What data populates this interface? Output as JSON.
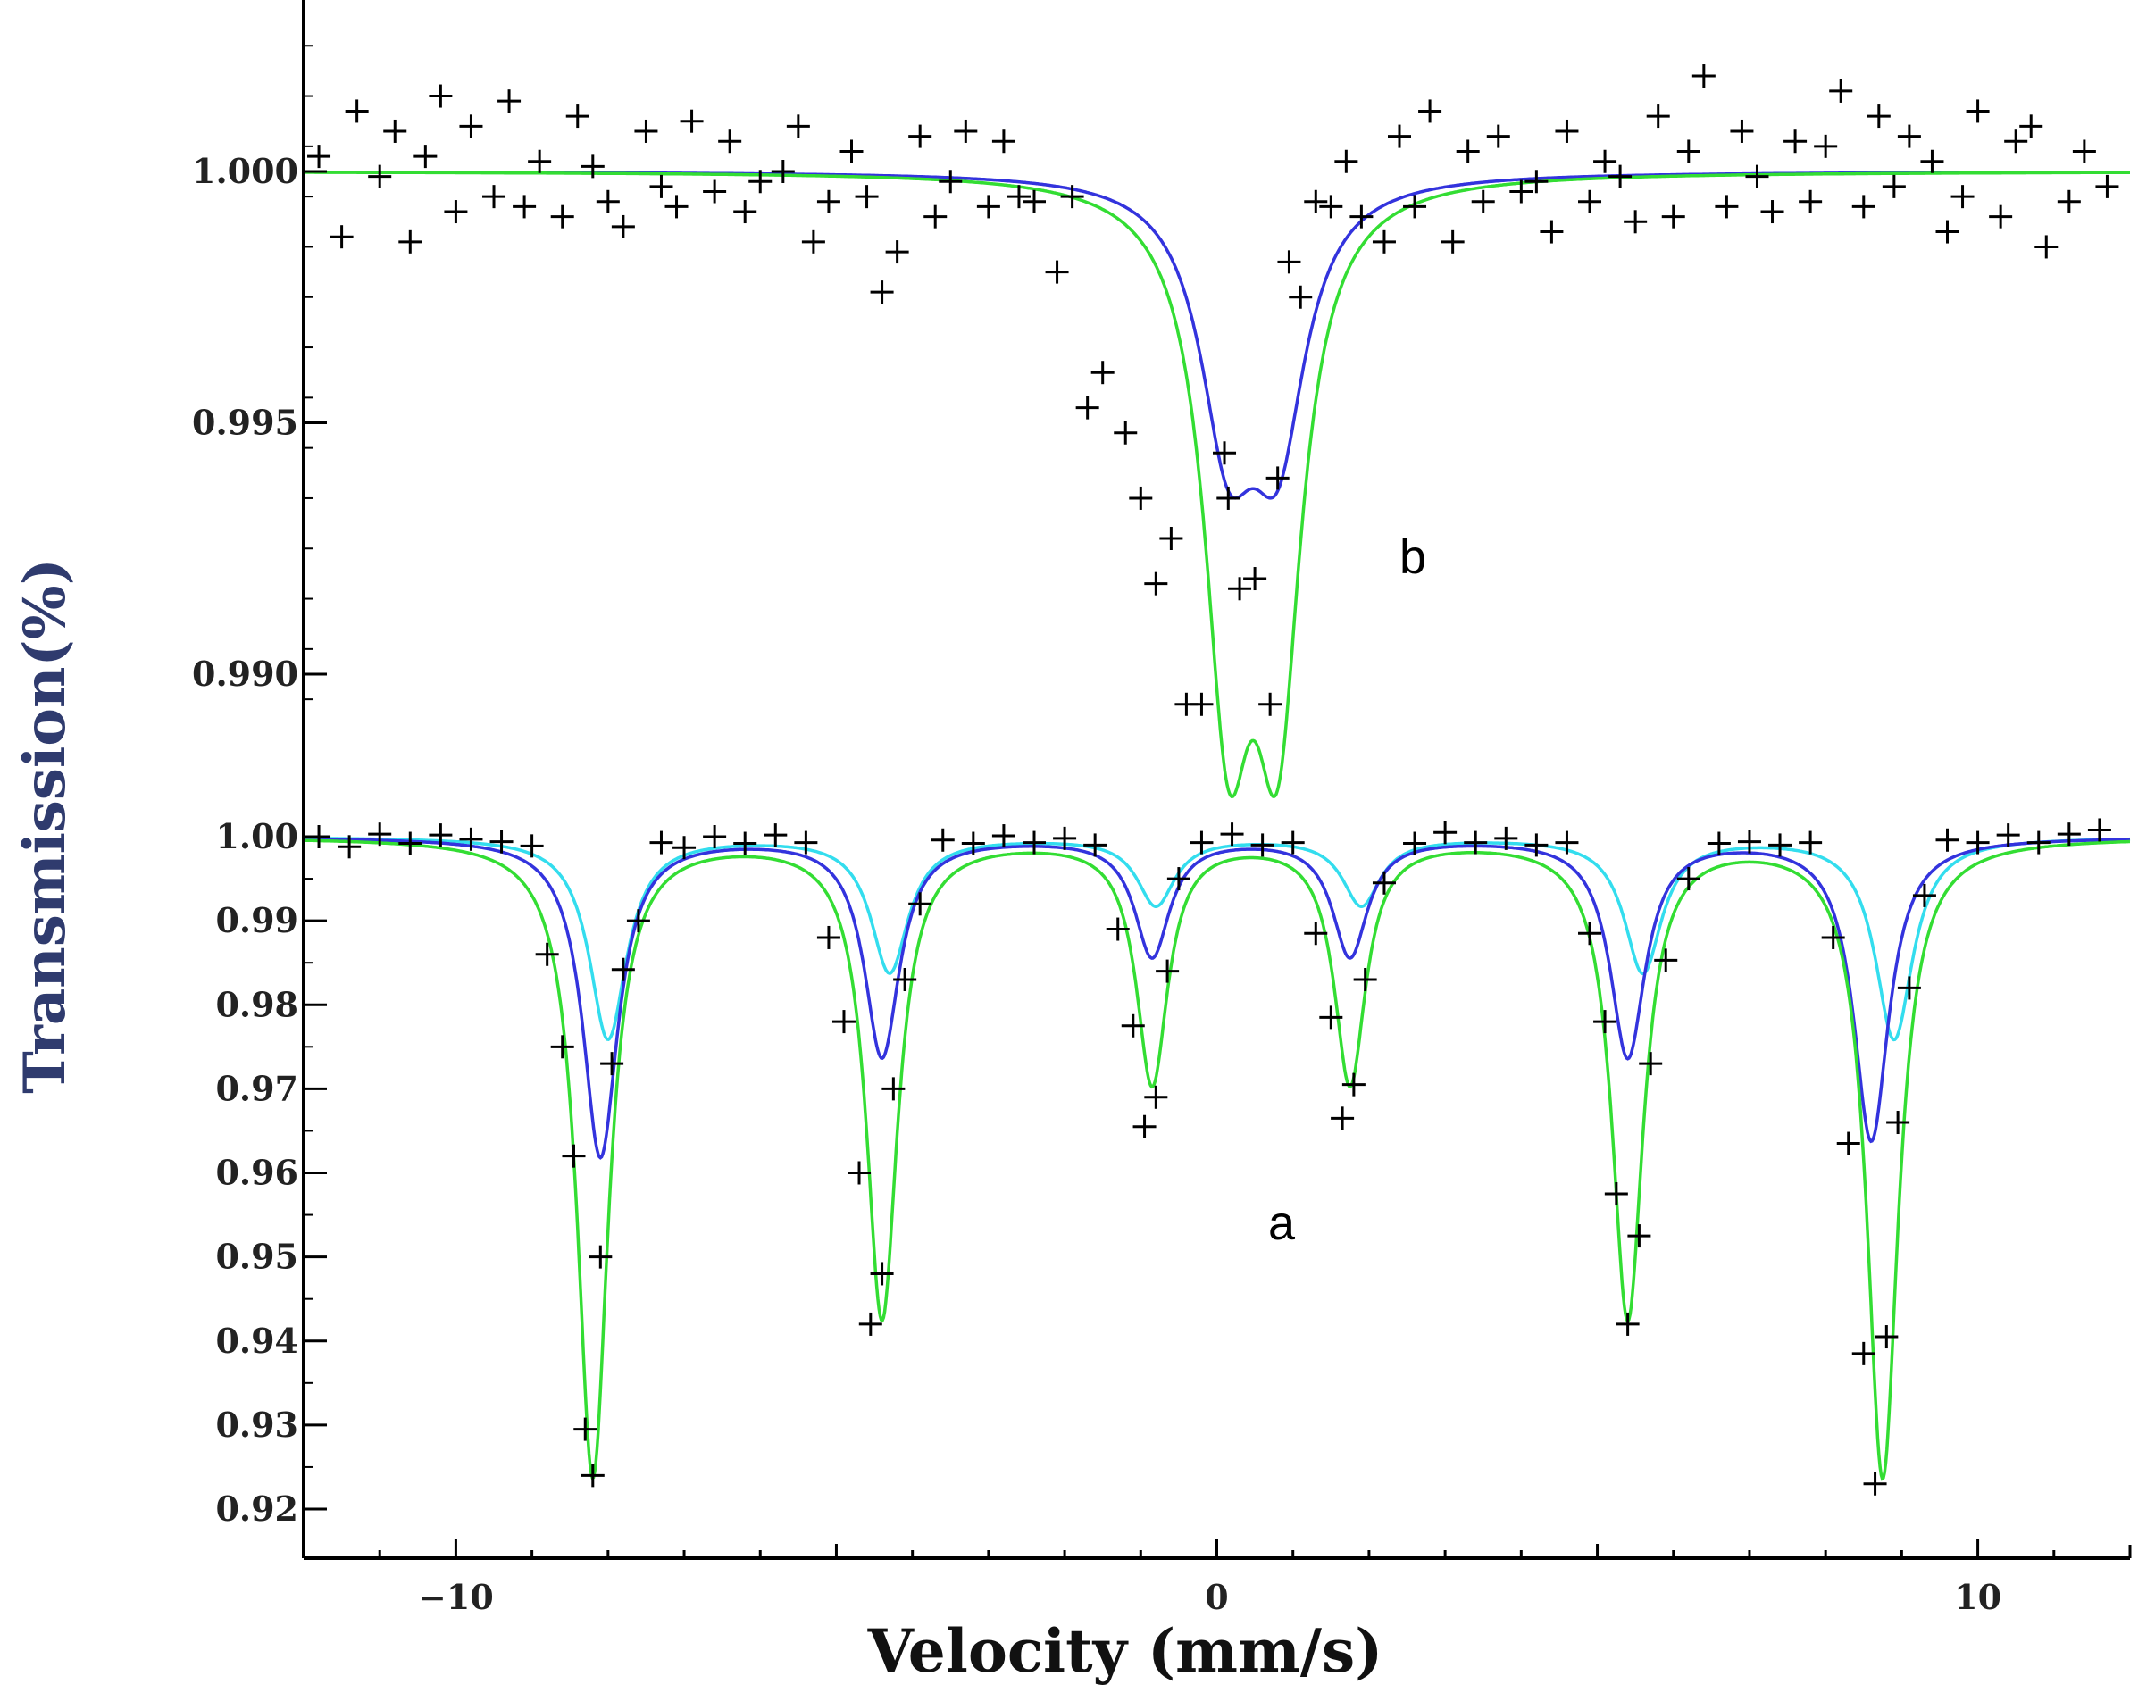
{
  "chart_data": {
    "type": "scatter",
    "xlabel": "Velocity (mm/s)",
    "ylabel": "Transmission(%)",
    "xlim": [
      -12,
      12
    ],
    "x_ticks": [
      -10,
      0,
      10
    ],
    "x_tick_labels": [
      "−10",
      "0",
      "10"
    ],
    "colors": {
      "data_marker": "#000000",
      "total_fit": "#33dd33",
      "sub_fit_1": "#3333dd",
      "sub_fit_2": "#33ddee",
      "axis": "#000000",
      "ylabel": "#2f3b6e"
    },
    "panels": [
      {
        "id": "b",
        "label": "b",
        "ylim": [
          0.9885,
          1.0035
        ],
        "y_ticks": [
          0.99,
          0.995,
          1.0
        ],
        "y_tick_labels": [
          "0.990",
          "0.995",
          "1.000"
        ],
        "fits": [
          {
            "role": "total",
            "color": "#33dd33",
            "lines": [
              {
                "pos": 0.15,
                "depth": 0.0098,
                "hwhm": 0.38
              },
              {
                "pos": 0.8,
                "depth": 0.0098,
                "hwhm": 0.38
              }
            ]
          },
          {
            "role": "component",
            "color": "#3333dd",
            "lines": [
              {
                "pos": 0.15,
                "depth": 0.0048,
                "hwhm": 0.45
              },
              {
                "pos": 0.8,
                "depth": 0.0048,
                "hwhm": 0.45
              }
            ]
          }
        ],
        "data": {
          "x": [
            -11.8,
            -11.5,
            -11.3,
            -11.0,
            -10.8,
            -10.6,
            -10.4,
            -10.2,
            -10.0,
            -9.8,
            -9.5,
            -9.3,
            -9.1,
            -8.9,
            -8.6,
            -8.4,
            -8.2,
            -8.0,
            -7.8,
            -7.5,
            -7.3,
            -7.1,
            -6.9,
            -6.6,
            -6.4,
            -6.2,
            -6.0,
            -5.7,
            -5.5,
            -5.3,
            -5.1,
            -4.8,
            -4.6,
            -4.4,
            -4.2,
            -3.9,
            -3.7,
            -3.5,
            -3.3,
            -3.0,
            -2.8,
            -2.6,
            -2.4,
            -2.1,
            -1.9,
            -1.7,
            -1.5,
            -1.2,
            -1.0,
            -0.8,
            -0.6,
            -0.4,
            -0.2,
            0.1,
            0.15,
            0.3,
            0.5,
            0.7,
            0.8,
            0.95,
            1.1,
            1.3,
            1.5,
            1.7,
            1.9,
            2.2,
            2.4,
            2.6,
            2.8,
            3.1,
            3.3,
            3.5,
            3.7,
            4.0,
            4.2,
            4.4,
            4.6,
            4.9,
            5.1,
            5.3,
            5.5,
            5.8,
            6.0,
            6.2,
            6.4,
            6.7,
            6.9,
            7.1,
            7.3,
            7.6,
            7.8,
            8.0,
            8.2,
            8.5,
            8.7,
            8.9,
            9.1,
            9.4,
            9.6,
            9.8,
            10.0,
            10.3,
            10.5,
            10.7,
            10.9,
            11.2,
            11.4,
            11.7
          ],
          "y": [
            1.0003,
            0.9987,
            1.0012,
            0.9999,
            1.0008,
            0.9986,
            1.0003,
            1.0015,
            0.9992,
            1.0009,
            0.9995,
            1.0014,
            0.9993,
            1.0002,
            0.9991,
            1.0011,
            1.0001,
            0.9994,
            0.9989,
            1.0008,
            0.9997,
            0.9993,
            1.001,
            0.9996,
            1.0006,
            0.9992,
            0.9998,
            1.0,
            1.0009,
            0.9986,
            0.9994,
            1.0004,
            0.9995,
            0.9976,
            0.9984,
            1.0007,
            0.9991,
            0.9998,
            1.0008,
            0.9993,
            1.0006,
            0.9995,
            0.9994,
            0.998,
            0.9995,
            0.9953,
            0.996,
            0.9948,
            0.9935,
            0.9918,
            0.9927,
            0.9894,
            0.9894,
            0.9944,
            0.9935,
            0.9917,
            0.9919,
            0.9894,
            0.9939,
            0.9982,
            0.9975,
            0.9994,
            0.9993,
            1.0002,
            0.9991,
            0.9986,
            1.0007,
            0.9993,
            1.0012,
            0.9986,
            1.0004,
            0.9994,
            1.0007,
            0.9996,
            0.9998,
            0.9988,
            1.0008,
            0.9994,
            1.0002,
            0.9999,
            0.999,
            1.0011,
            0.9991,
            1.0004,
            1.0019,
            0.9993,
            1.0008,
            0.9999,
            0.9992,
            1.0006,
            0.9994,
            1.0005,
            1.0016,
            0.9993,
            1.0011,
            0.9997,
            1.0007,
            1.0002,
            0.9988,
            0.9995,
            1.0012,
            0.9991,
            1.0006,
            1.0009,
            0.9985,
            0.9994,
            1.0004,
            0.9997
          ]
        }
      },
      {
        "id": "a",
        "label": "a",
        "ylim": [
          0.9155,
          1.0015
        ],
        "y_ticks": [
          0.92,
          0.93,
          0.94,
          0.95,
          0.96,
          0.97,
          0.98,
          0.99,
          1.0
        ],
        "y_tick_labels": [
          "0.92",
          "0.93",
          "0.94",
          "0.95",
          "0.96",
          "0.97",
          "0.98",
          "0.99",
          "1.00"
        ],
        "fits": [
          {
            "role": "total",
            "color": "#33dd33",
            "lines": [
              {
                "pos": -8.2,
                "depth": 0.076,
                "hwhm": 0.25
              },
              {
                "pos": -4.4,
                "depth": 0.057,
                "hwhm": 0.25
              },
              {
                "pos": -0.85,
                "depth": 0.029,
                "hwhm": 0.25
              },
              {
                "pos": 1.75,
                "depth": 0.029,
                "hwhm": 0.25
              },
              {
                "pos": 5.4,
                "depth": 0.057,
                "hwhm": 0.25
              },
              {
                "pos": 8.75,
                "depth": 0.076,
                "hwhm": 0.25
              }
            ]
          },
          {
            "role": "component",
            "color": "#3333dd",
            "lines": [
              {
                "pos": -8.1,
                "depth": 0.038,
                "hwhm": 0.28
              },
              {
                "pos": -4.4,
                "depth": 0.026,
                "hwhm": 0.28
              },
              {
                "pos": -0.85,
                "depth": 0.014,
                "hwhm": 0.28
              },
              {
                "pos": 1.75,
                "depth": 0.014,
                "hwhm": 0.28
              },
              {
                "pos": 5.4,
                "depth": 0.026,
                "hwhm": 0.28
              },
              {
                "pos": 8.6,
                "depth": 0.036,
                "hwhm": 0.28
              }
            ]
          },
          {
            "role": "component",
            "color": "#33ddee",
            "lines": [
              {
                "pos": -8.0,
                "depth": 0.024,
                "hwhm": 0.3
              },
              {
                "pos": -4.3,
                "depth": 0.016,
                "hwhm": 0.3
              },
              {
                "pos": -0.8,
                "depth": 0.008,
                "hwhm": 0.3
              },
              {
                "pos": 1.9,
                "depth": 0.008,
                "hwhm": 0.3
              },
              {
                "pos": 5.6,
                "depth": 0.016,
                "hwhm": 0.3
              },
              {
                "pos": 8.9,
                "depth": 0.024,
                "hwhm": 0.3
              }
            ]
          }
        ],
        "data": {
          "x": [
            -11.8,
            -11.4,
            -11.0,
            -10.6,
            -10.2,
            -9.8,
            -9.4,
            -9.0,
            -8.8,
            -8.6,
            -8.45,
            -8.3,
            -8.2,
            -8.1,
            -7.95,
            -7.8,
            -7.6,
            -7.3,
            -7.0,
            -6.6,
            -6.2,
            -5.8,
            -5.4,
            -5.1,
            -4.9,
            -4.7,
            -4.55,
            -4.4,
            -4.25,
            -4.1,
            -3.9,
            -3.6,
            -3.2,
            -2.8,
            -2.4,
            -2.0,
            -1.6,
            -1.3,
            -1.1,
            -0.95,
            -0.8,
            -0.65,
            -0.5,
            -0.2,
            0.2,
            0.6,
            1.0,
            1.3,
            1.5,
            1.65,
            1.8,
            1.95,
            2.2,
            2.6,
            3.0,
            3.4,
            3.8,
            4.2,
            4.6,
            4.9,
            5.1,
            5.25,
            5.4,
            5.55,
            5.7,
            5.9,
            6.2,
            6.6,
            7.0,
            7.4,
            7.8,
            8.1,
            8.3,
            8.5,
            8.65,
            8.8,
            8.95,
            9.1,
            9.3,
            9.6,
            10.0,
            10.4,
            10.8,
            11.2,
            11.6
          ],
          "y": [
            1.0,
            0.9988,
            1.0003,
            0.9992,
            1.0002,
            0.9997,
            0.9994,
            0.9989,
            0.986,
            0.975,
            0.962,
            0.9295,
            0.924,
            0.95,
            0.973,
            0.9842,
            0.99,
            0.9993,
            0.9987,
            1.0,
            0.9992,
            1.0002,
            0.9993,
            0.988,
            0.978,
            0.96,
            0.942,
            0.948,
            0.97,
            0.983,
            0.992,
            0.9996,
            0.9992,
            1.0001,
            0.9993,
            0.9998,
            0.999,
            0.989,
            0.9775,
            0.9655,
            0.969,
            0.984,
            0.995,
            0.9993,
            1.0003,
            0.999,
            0.9993,
            0.9885,
            0.9785,
            0.9665,
            0.9705,
            0.983,
            0.9945,
            0.9992,
            1.0005,
            0.9993,
            0.9998,
            0.999,
            0.9993,
            0.9885,
            0.978,
            0.9575,
            0.942,
            0.9525,
            0.973,
            0.9853,
            0.995,
            0.9992,
            0.9994,
            0.999,
            0.9993,
            0.988,
            0.9635,
            0.9385,
            0.923,
            0.9405,
            0.966,
            0.982,
            0.993,
            0.9996,
            0.9993,
            1.0002,
            0.9993,
            1.0003,
            1.0008
          ]
        }
      }
    ]
  }
}
